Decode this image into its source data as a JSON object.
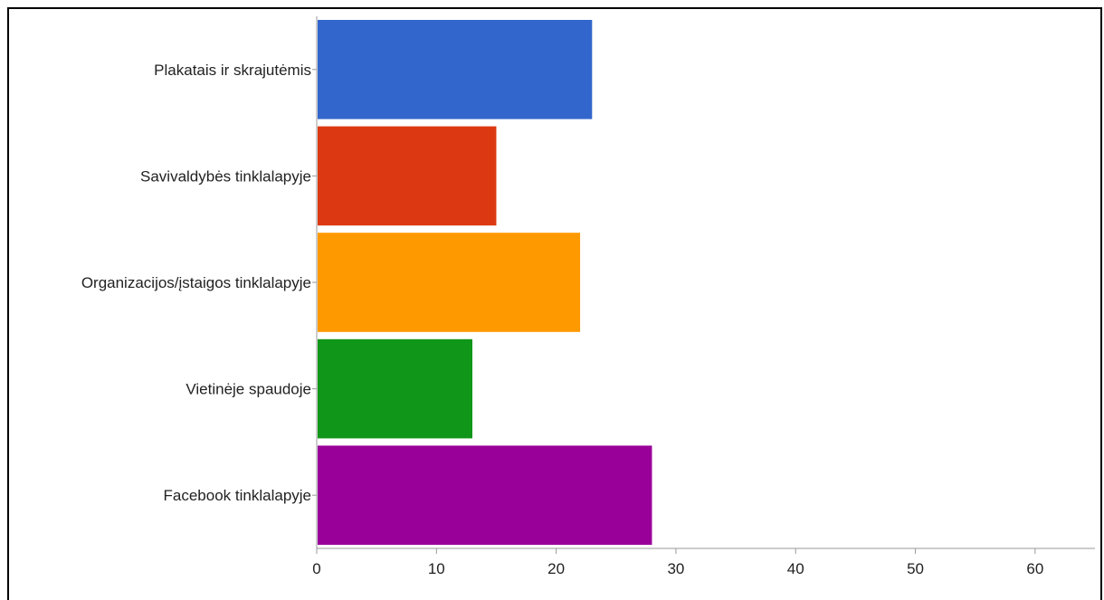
{
  "chart_data": {
    "type": "bar",
    "orientation": "horizontal",
    "title": "",
    "xlabel": "",
    "ylabel": "",
    "categories": [
      "Plakatais ir skrajutėmis",
      "Savivaldybės tinklalapyje",
      "Organizacijos/įstaigos  tinklalapyje",
      "Vietinėje spaudoje",
      "Facebook tinklalapyje"
    ],
    "values": [
      23,
      15,
      22,
      13,
      28
    ],
    "colors": [
      "#3366cc",
      "#dc3912",
      "#ff9900",
      "#109618",
      "#990099"
    ],
    "xlim": [
      0,
      65
    ],
    "xticks": [
      "0",
      "10",
      "20",
      "30",
      "40",
      "50",
      "60"
    ],
    "grid": false,
    "legend": "none"
  }
}
